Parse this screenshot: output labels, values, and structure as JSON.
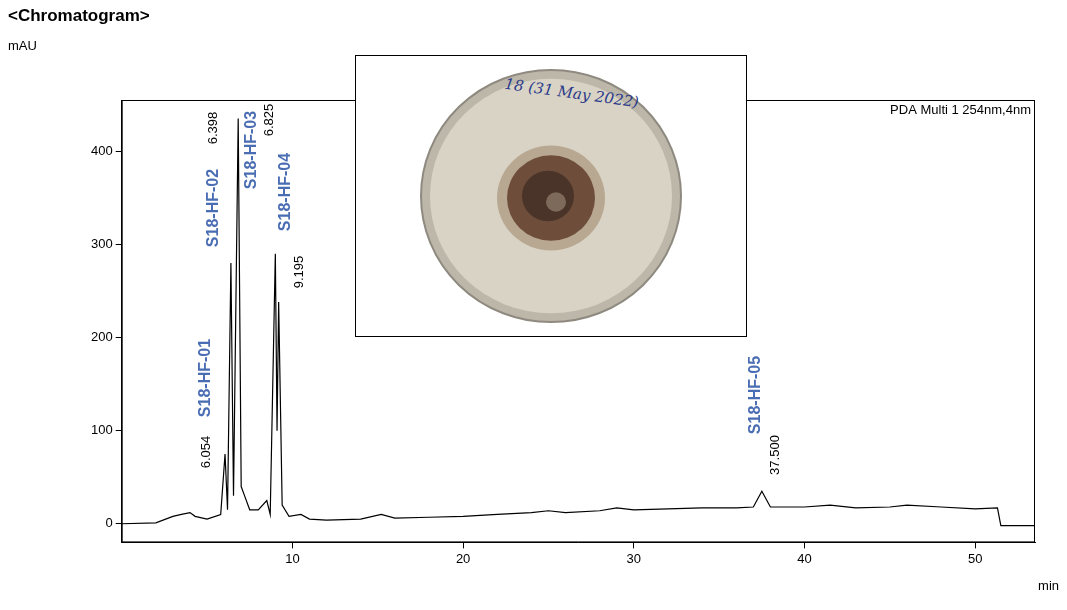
{
  "chart_data": {
    "type": "line",
    "title": "<Chromatogram>",
    "y_label": "mAU",
    "x_label": "min",
    "annotation": "PDA Multi 1 254nm,4nm",
    "inset": {
      "label": "18 (31 May 2022)"
    },
    "x": [
      0,
      2,
      3,
      3.5,
      4,
      4.3,
      5,
      5.8,
      6.054,
      6.2,
      6.398,
      6.55,
      6.825,
      7,
      7.2,
      7.5,
      8,
      8.5,
      8.7,
      9,
      9.1,
      9.195,
      9.4,
      9.8,
      10.5,
      11,
      12,
      14,
      15.2,
      16,
      18,
      20,
      22,
      24,
      25,
      26,
      28,
      29,
      30,
      32,
      34,
      36,
      37,
      37.5,
      38,
      40,
      41.5,
      43,
      45,
      46,
      48,
      50,
      51.3,
      51.5,
      53.5
    ],
    "values": [
      0,
      1,
      8,
      10,
      12,
      8,
      5,
      10,
      75,
      15,
      280,
      30,
      435,
      40,
      30,
      15,
      15,
      25,
      10,
      290,
      100,
      238,
      20,
      8,
      10,
      5,
      4,
      5,
      10,
      6,
      7,
      8,
      10,
      12,
      14,
      12,
      14,
      17,
      15,
      16,
      17,
      17,
      18,
      35,
      18,
      18,
      20,
      17,
      18,
      20,
      18,
      16,
      17,
      -2,
      -2
    ],
    "color": "#000000",
    "peaks": [
      {
        "name": "S18-HF-01",
        "rt": 6.054,
        "rt_label": "6.054"
      },
      {
        "name": "S18-HF-02",
        "rt": 6.398,
        "rt_label": "6.398"
      },
      {
        "name": "S18-HF-03",
        "rt": 6.825,
        "rt_label": "6.825"
      },
      {
        "name": "S18-HF-04",
        "rt": 9.195,
        "rt_label": "9.195"
      },
      {
        "name": "S18-HF-05",
        "rt": 37.5,
        "rt_label": "37.500"
      }
    ],
    "xlim": [
      0,
      53.5
    ],
    "xticks": [
      10,
      20,
      30,
      40,
      50
    ],
    "ylim": [
      -20,
      455
    ],
    "yticks": [
      0,
      100,
      200,
      300,
      400
    ],
    "grid": false
  }
}
